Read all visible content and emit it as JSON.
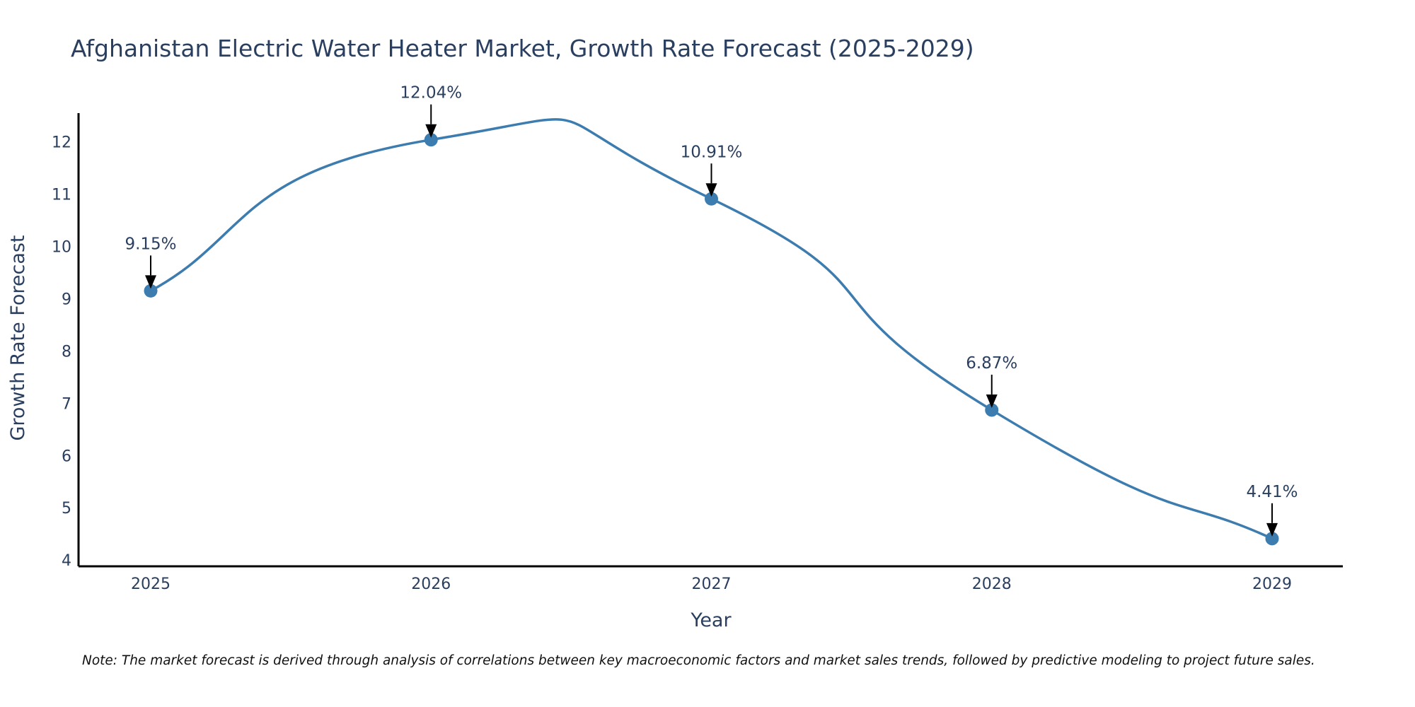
{
  "chart_data": {
    "type": "line",
    "title": "Afghanistan Electric Water Heater Market, Growth Rate Forecast (2025-2029)",
    "xlabel": "Year",
    "ylabel": "Growth Rate Forecast",
    "categories": [
      "2025",
      "2026",
      "2027",
      "2028",
      "2029"
    ],
    "series": [
      {
        "name": "Growth Rate Forecast",
        "values": [
          9.15,
          12.04,
          10.91,
          6.87,
          4.41
        ],
        "labels": [
          "9.15%",
          "12.04%",
          "10.91%",
          "6.87%",
          "4.41%"
        ],
        "color": "#3d7caf"
      }
    ],
    "yticks": [
      "4",
      "5",
      "6",
      "7",
      "8",
      "9",
      "10",
      "11",
      "12"
    ],
    "ylim": [
      3.88,
      12.55
    ],
    "grid": false,
    "line_shape": "spline",
    "note": "Note: The market forecast is derived through analysis of correlations between key macroeconomic factors and market sales trends, followed by predictive modeling to project future sales."
  }
}
